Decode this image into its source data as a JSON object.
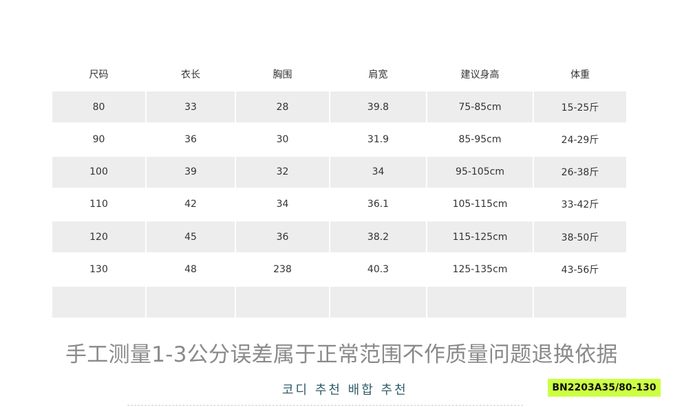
{
  "table": {
    "headers": [
      "尺码",
      "衣长",
      "胸围",
      "肩宽",
      "建议身高",
      "体重"
    ],
    "rows": [
      [
        "80",
        "33",
        "28",
        "39.8",
        "75-85cm",
        "15-25斤"
      ],
      [
        "90",
        "36",
        "30",
        "31.9",
        "85-95cm",
        "24-29斤"
      ],
      [
        "100",
        "39",
        "32",
        "34",
        "95-105cm",
        "26-38斤"
      ],
      [
        "110",
        "42",
        "34",
        "36.1",
        "105-115cm",
        "33-42斤"
      ],
      [
        "120",
        "45",
        "36",
        "38.2",
        "115-125cm",
        "38-50斤"
      ],
      [
        "130",
        "48",
        "238",
        "40.3",
        "125-135cm",
        "43-56斤"
      ],
      [
        "",
        "",
        "",
        "",
        "",
        ""
      ]
    ]
  },
  "caption": "手工测量1-3公分误差属于正常范围不作质量问题退换依据",
  "korean_label": "코디 추천 배합 추천",
  "product_code": "BN2203A35/80-130",
  "colors": {
    "shade": "#ededed",
    "badge": "#ccff44",
    "korean_text": "#2f5d6a"
  }
}
